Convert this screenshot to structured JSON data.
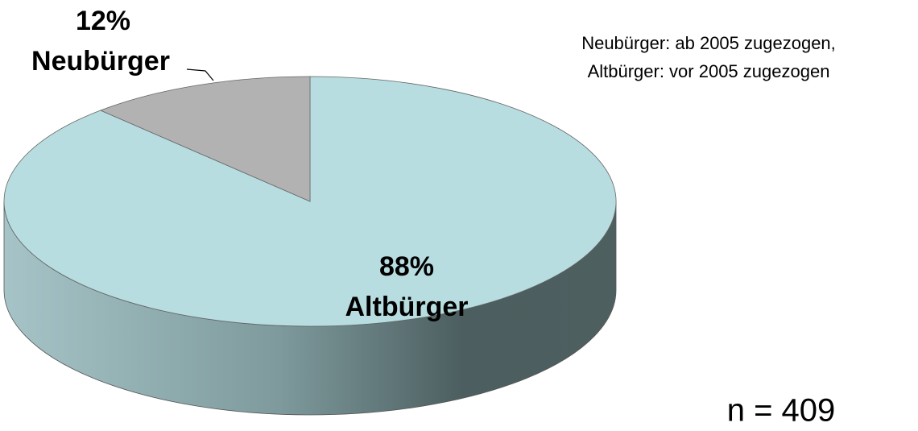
{
  "chart_data": {
    "type": "pie3d",
    "categories": [
      "Altbürger",
      "Neubürger"
    ],
    "values": [
      88,
      12
    ],
    "value_labels": [
      "88%",
      "12%"
    ],
    "colors": [
      "#b7dde0",
      "#b2b2b2"
    ],
    "annotation": [
      "Neubürger: ab 2005 zugezogen,",
      "Altbürger: vor 2005 zugezogen"
    ],
    "note": "n = 409"
  }
}
